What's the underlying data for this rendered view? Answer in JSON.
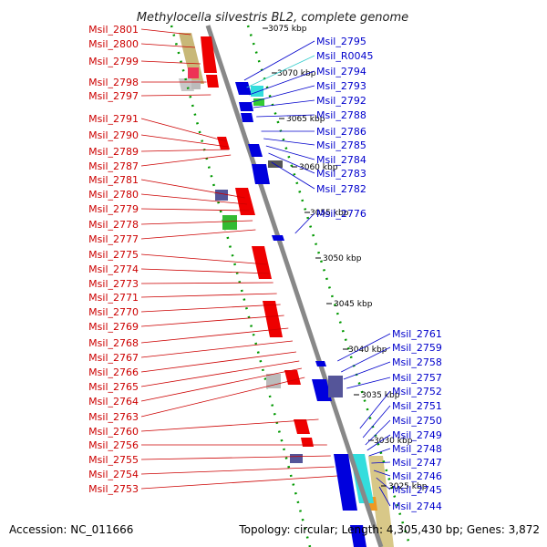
{
  "title": "Methylocella silvestris BL2, complete genome",
  "footer": {
    "accession": "Accession: NC_011666",
    "summary": "Topology: circular; Length: 4,305,430 bp; Genes: 3,872"
  },
  "ticks": [
    "3075 kbp",
    "3070 kbp",
    "3065 kbp",
    "3060 kbp",
    "3055 kbp",
    "3050 kbp",
    "3045 kbp",
    "3040 kbp",
    "3035 kbp",
    "3030 kbp",
    "3025 kbp"
  ],
  "left_labels": [
    "Msil_2801",
    "Msil_2800",
    "Msil_2799",
    "Msil_2798",
    "Msil_2797",
    "Msil_2791",
    "Msil_2790",
    "Msil_2789",
    "Msil_2787",
    "Msil_2781",
    "Msil_2780",
    "Msil_2779",
    "Msil_2778",
    "Msil_2777",
    "Msil_2775",
    "Msil_2774",
    "Msil_2773",
    "Msil_2771",
    "Msil_2770",
    "Msil_2769",
    "Msil_2768",
    "Msil_2767",
    "Msil_2766",
    "Msil_2765",
    "Msil_2764",
    "Msil_2763",
    "Msil_2760",
    "Msil_2756",
    "Msil_2755",
    "Msil_2754",
    "Msil_2753"
  ],
  "right_labels": [
    {
      "text": "Msil_2795",
      "color": "#0000cc"
    },
    {
      "text": "Msil_R0045",
      "color": "#33cccc"
    },
    {
      "text": "Msil_2794",
      "color": "#0000cc"
    },
    {
      "text": "Msil_2793",
      "color": "#0000cc"
    },
    {
      "text": "Msil_2792",
      "color": "#0000cc"
    },
    {
      "text": "Msil_2788",
      "color": "#0000cc"
    },
    {
      "text": "Msil_2786",
      "color": "#0000cc"
    },
    {
      "text": "Msil_2785",
      "color": "#0000cc"
    },
    {
      "text": "Msil_2784",
      "color": "#0000cc"
    },
    {
      "text": "Msil_2783",
      "color": "#0000cc"
    },
    {
      "text": "Msil_2782",
      "color": "#0000cc"
    },
    {
      "text": "Msil_2776",
      "color": "#0000cc"
    },
    {
      "text": "Msil_2761",
      "color": "#0000cc"
    },
    {
      "text": "Msil_2759",
      "color": "#0000cc"
    },
    {
      "text": "Msil_2758",
      "color": "#0000cc"
    },
    {
      "text": "Msil_2757",
      "color": "#0000cc"
    },
    {
      "text": "Msil_2752",
      "color": "#0000cc"
    },
    {
      "text": "Msil_2751",
      "color": "#0000cc"
    },
    {
      "text": "Msil_2750",
      "color": "#0000cc"
    },
    {
      "text": "Msil_2749",
      "color": "#0000cc"
    },
    {
      "text": "Msil_2748",
      "color": "#0000cc"
    },
    {
      "text": "Msil_2747",
      "color": "#0000cc"
    },
    {
      "text": "Msil_2746",
      "color": "#0000cc"
    },
    {
      "text": "Msil_2745",
      "color": "#0000cc"
    },
    {
      "text": "Msil_2744",
      "color": "#0000cc"
    }
  ],
  "colors": {
    "backbone": "#888888",
    "guide_dots": "#009900",
    "forward_cds": "#ee0000",
    "reverse_cds": "#0000dd",
    "rna": "#33dddd",
    "other_a": "#555599",
    "other_b": "#33bb33",
    "gc_track": "#c8b878"
  }
}
